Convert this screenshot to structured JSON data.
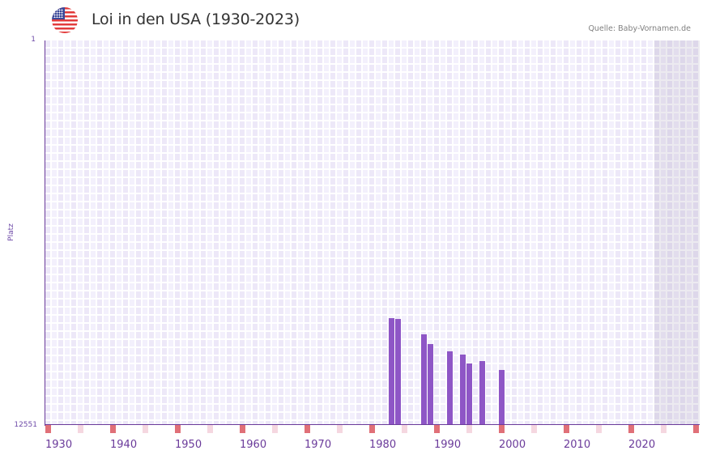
{
  "header": {
    "flag_icon": "us-flag-icon",
    "title": "Loi in den USA (1930-2023)",
    "source": "Quelle: Baby-Vornamen.de"
  },
  "colors": {
    "bar": "#8e56c6",
    "axis": "#6a3a9a",
    "grid_a": "#ede8f8",
    "grid_b": "#f3f0fc",
    "decade_marker": "#e07078",
    "half_decade_marker": "#f5d7e0"
  },
  "chart_data": {
    "type": "bar",
    "title": "Loi in den USA (1930-2023)",
    "xlabel": "",
    "ylabel": "Platz",
    "y_inverted": true,
    "ylim": [
      1,
      12551
    ],
    "y_tick_labels": [
      "1",
      "12551"
    ],
    "x_range": [
      1930,
      2030
    ],
    "x_tick_labels": [
      "1930",
      "1940",
      "1950",
      "1960",
      "1970",
      "1980",
      "1990",
      "2000",
      "2010",
      "2020"
    ],
    "shaded_future_from": 2024,
    "grid": true,
    "legend": null,
    "categories": [
      1983,
      1984,
      1988,
      1989,
      1992,
      1994,
      1995,
      1997,
      2000
    ],
    "values": [
      9060,
      9090,
      9590,
      9910,
      10150,
      10250,
      10540,
      10460,
      10750
    ],
    "series": [
      {
        "name": "Platz",
        "values": [
          9060,
          9090,
          9590,
          9910,
          10150,
          10250,
          10540,
          10460,
          10750
        ]
      }
    ]
  },
  "axis": {
    "y_top": "1",
    "y_bottom": "12551",
    "y_title": "Platz",
    "x_ticks": [
      "1930",
      "1940",
      "1950",
      "1960",
      "1970",
      "1980",
      "1990",
      "2000",
      "2010",
      "2020"
    ]
  }
}
